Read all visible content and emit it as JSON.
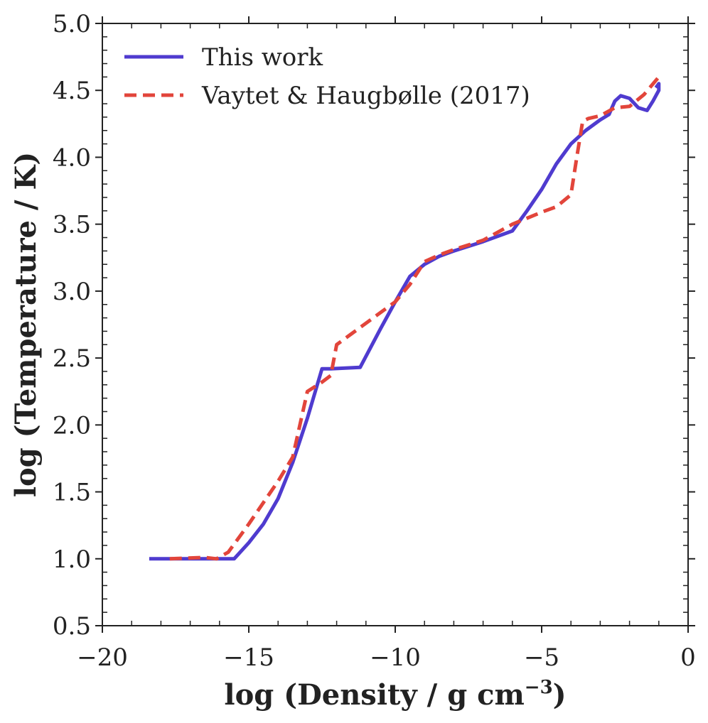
{
  "chart_data": {
    "type": "line",
    "title": "",
    "xlabel": "log (Density / g cm",
    "xlabel_superscript": "−3",
    "xlabel_close": ")",
    "ylabel": "log (Temperature / K)",
    "xlim": [
      -20,
      0
    ],
    "ylim": [
      0.5,
      5.0
    ],
    "x_ticks": [
      -20,
      -15,
      -10,
      -5,
      0
    ],
    "x_tick_labels": [
      "−20",
      "−15",
      "−10",
      "−5",
      "0"
    ],
    "y_ticks": [
      0.5,
      1.0,
      1.5,
      2.0,
      2.5,
      3.0,
      3.5,
      4.0,
      4.5,
      5.0
    ],
    "y_tick_labels": [
      "0.5",
      "1.0",
      "1.5",
      "2.0",
      "2.5",
      "3.0",
      "3.5",
      "4.0",
      "4.5",
      "5.0"
    ],
    "grid": false,
    "legend_position": "top-left",
    "series": [
      {
        "name": "This work",
        "color": "#4f3bcf",
        "style": "solid",
        "x": [
          -18.4,
          -17.0,
          -16.0,
          -15.5,
          -15.0,
          -14.5,
          -14.0,
          -13.5,
          -13.0,
          -12.5,
          -12.2,
          -11.2,
          -10.5,
          -10.0,
          -9.5,
          -9.0,
          -8.5,
          -8.0,
          -7.0,
          -6.0,
          -5.5,
          -5.0,
          -4.5,
          -4.0,
          -3.5,
          -3.0,
          -2.7,
          -2.5,
          -2.3,
          -2.0,
          -1.7,
          -1.4,
          -1.2,
          -1.0,
          -1.0,
          -1.1
        ],
        "y": [
          1.0,
          1.0,
          1.0,
          1.0,
          1.12,
          1.26,
          1.45,
          1.72,
          2.05,
          2.42,
          2.42,
          2.43,
          2.72,
          2.92,
          3.11,
          3.2,
          3.26,
          3.3,
          3.37,
          3.45,
          3.6,
          3.76,
          3.95,
          4.1,
          4.2,
          4.28,
          4.32,
          4.42,
          4.46,
          4.44,
          4.37,
          4.35,
          4.42,
          4.5,
          4.55,
          4.52
        ]
      },
      {
        "name": "Vaytet & Haugbølle (2017)",
        "color": "#e2453b",
        "style": "dashed",
        "x": [
          -17.7,
          -16.5,
          -16.1,
          -15.7,
          -15.0,
          -14.5,
          -14.0,
          -13.5,
          -13.0,
          -12.5,
          -12.2,
          -12.0,
          -11.5,
          -11.0,
          -10.5,
          -10.0,
          -9.5,
          -9.0,
          -8.5,
          -8.0,
          -7.0,
          -6.0,
          -5.0,
          -4.5,
          -4.0,
          -3.8,
          -3.6,
          -3.4,
          -3.0,
          -2.5,
          -2.0,
          -1.5,
          -1.0
        ],
        "y": [
          1.0,
          1.01,
          1.0,
          1.05,
          1.26,
          1.42,
          1.58,
          1.76,
          2.25,
          2.32,
          2.37,
          2.6,
          2.68,
          2.76,
          2.84,
          2.92,
          3.05,
          3.22,
          3.27,
          3.31,
          3.38,
          3.5,
          3.59,
          3.63,
          3.72,
          4.0,
          4.27,
          4.29,
          4.31,
          4.37,
          4.38,
          4.47,
          4.6
        ]
      }
    ]
  }
}
